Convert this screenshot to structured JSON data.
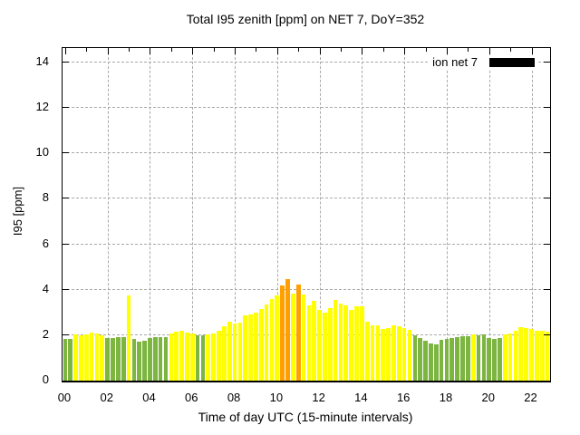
{
  "title": "Total I95 zenith [ppm] on NET 7, DoY=352",
  "legend": {
    "label": "ion net 7",
    "swatch_color": "#000000"
  },
  "axes": {
    "ylabel": "I95 [ppm]",
    "xlabel": "Time of day UTC (15-minute intervals)"
  },
  "chart_data": {
    "type": "bar",
    "title": "Total I95 zenith [ppm] on NET 7, DoY=352",
    "xlabel": "Time of day UTC (15-minute intervals)",
    "ylabel": "I95 [ppm]",
    "interval_minutes": 15,
    "ylim": [
      0,
      14.64
    ],
    "grid": true,
    "legend_position": "top-right",
    "y_ticks": [
      0,
      2,
      4,
      6,
      8,
      10,
      12,
      14
    ],
    "x_ticks": [
      "00",
      "02",
      "04",
      "06",
      "08",
      "10",
      "12",
      "14",
      "16",
      "18",
      "20",
      "22"
    ],
    "palette": {
      "y": "#ffff00",
      "g": "#7cb540",
      "o": "#ff9f00"
    },
    "categories": [
      "00:00",
      "00:15",
      "00:30",
      "00:45",
      "01:00",
      "01:15",
      "01:30",
      "01:45",
      "02:00",
      "02:15",
      "02:30",
      "02:45",
      "03:00",
      "03:15",
      "03:30",
      "03:45",
      "04:00",
      "04:15",
      "04:30",
      "04:45",
      "05:00",
      "05:15",
      "05:30",
      "05:45",
      "06:00",
      "06:15",
      "06:30",
      "06:45",
      "07:00",
      "07:15",
      "07:30",
      "07:45",
      "08:00",
      "08:15",
      "08:30",
      "08:45",
      "09:00",
      "09:15",
      "09:30",
      "09:45",
      "10:00",
      "10:15",
      "10:30",
      "10:45",
      "11:00",
      "11:15",
      "11:30",
      "11:45",
      "12:00",
      "12:15",
      "12:30",
      "12:45",
      "13:00",
      "13:15",
      "13:30",
      "13:45",
      "14:00",
      "14:15",
      "14:30",
      "14:45",
      "15:00",
      "15:15",
      "15:30",
      "15:45",
      "16:00",
      "16:15",
      "16:30",
      "16:45",
      "17:00",
      "17:15",
      "17:30",
      "17:45",
      "18:00",
      "18:15",
      "18:30",
      "18:45",
      "19:00",
      "19:15",
      "19:30",
      "19:45",
      "20:00",
      "20:15",
      "20:30",
      "20:45",
      "21:00",
      "21:15",
      "21:30",
      "21:45",
      "22:00",
      "22:15",
      "22:30",
      "22:45"
    ],
    "series": [
      {
        "name": "ion net 7",
        "values": [
          1.85,
          1.85,
          2.02,
          1.98,
          2.03,
          2.11,
          2.07,
          2.0,
          1.86,
          1.88,
          1.9,
          1.91,
          3.75,
          1.82,
          1.72,
          1.75,
          1.88,
          1.92,
          1.9,
          1.93,
          2.06,
          2.15,
          2.19,
          2.1,
          2.08,
          2.0,
          2.0,
          2.02,
          2.06,
          2.19,
          2.39,
          2.59,
          2.53,
          2.55,
          2.86,
          2.92,
          3.01,
          3.15,
          3.35,
          3.6,
          3.76,
          4.19,
          4.45,
          3.85,
          4.21,
          3.81,
          3.32,
          3.52,
          3.12,
          3.01,
          3.19,
          3.55,
          3.41,
          3.32,
          3.1,
          3.28,
          3.26,
          2.59,
          2.43,
          2.43,
          2.26,
          2.3,
          2.45,
          2.39,
          2.31,
          2.25,
          1.98,
          1.87,
          1.75,
          1.65,
          1.59,
          1.78,
          1.85,
          1.87,
          1.9,
          1.94,
          1.95,
          2.04,
          1.98,
          2.02,
          1.88,
          1.85,
          1.88,
          2.02,
          2.09,
          2.19,
          2.35,
          2.3,
          2.26,
          2.19,
          2.19,
          2.15
        ],
        "colors": [
          "g",
          "g",
          "y",
          "y",
          "y",
          "y",
          "y",
          "y",
          "g",
          "g",
          "g",
          "g",
          "y",
          "g",
          "g",
          "g",
          "g",
          "g",
          "g",
          "g",
          "y",
          "y",
          "y",
          "y",
          "y",
          "g",
          "g",
          "y",
          "y",
          "y",
          "y",
          "y",
          "y",
          "y",
          "y",
          "y",
          "y",
          "y",
          "y",
          "y",
          "y",
          "o",
          "o",
          "y",
          "o",
          "y",
          "y",
          "y",
          "y",
          "y",
          "y",
          "y",
          "y",
          "y",
          "y",
          "y",
          "y",
          "y",
          "y",
          "y",
          "y",
          "y",
          "y",
          "y",
          "y",
          "y",
          "g",
          "g",
          "g",
          "g",
          "g",
          "g",
          "g",
          "g",
          "g",
          "g",
          "g",
          "y",
          "g",
          "g",
          "g",
          "g",
          "g",
          "y",
          "y",
          "y",
          "y",
          "y",
          "y",
          "y",
          "y",
          "y"
        ]
      }
    ]
  }
}
